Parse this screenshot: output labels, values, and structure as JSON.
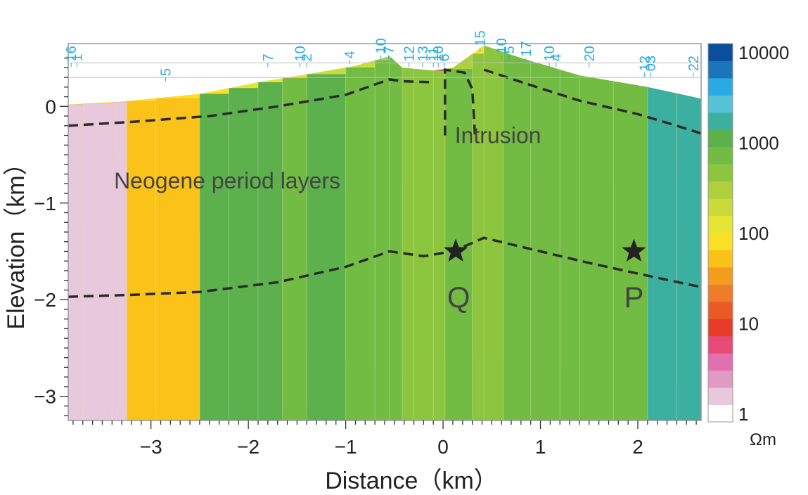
{
  "chart_data": {
    "type": "heatmap",
    "title": "",
    "xlabel": "Distance（km）",
    "ylabel": "Elevation（km）",
    "xlim": [
      -3.85,
      2.65
    ],
    "ylim": [
      -3.25,
      0.65
    ],
    "x_ticks": [
      -3,
      -2,
      -1,
      0,
      1,
      2
    ],
    "x_tick_labels": [
      "−3",
      "−2",
      "−1",
      "0",
      "1",
      "2"
    ],
    "y_ticks": [
      0,
      -1,
      -2,
      -3
    ],
    "y_tick_labels": [
      "0",
      "−1",
      "−2",
      "−3"
    ],
    "grid": false,
    "colorbar": {
      "unit": "Ωm",
      "tick_labels": [
        "10000",
        "1000",
        "100",
        "10",
        "1"
      ],
      "tick_values": [
        10000,
        1000,
        100,
        10,
        1
      ],
      "colors": [
        "#ffffff",
        "#e8c8dc",
        "#e19ac4",
        "#e070ae",
        "#e84a78",
        "#e83c28",
        "#ea5a26",
        "#ee7c28",
        "#f29c20",
        "#fbc21a",
        "#f9e026",
        "#e6e632",
        "#cadc3a",
        "#aed03c",
        "#8cc63e",
        "#72bc44",
        "#5cb14c",
        "#3cb0a0",
        "#56c2d6",
        "#2aaae2",
        "#1a76bc",
        "#0a4f9c"
      ]
    },
    "stations": [
      {
        "label": "16",
        "x": -3.82,
        "ytop": 0.45,
        "rot": true
      },
      {
        "label": "1",
        "x": -3.76,
        "ytop": 0.45,
        "rot": true
      },
      {
        "label": "5",
        "x": -2.85,
        "ytop": 0.3,
        "rot": true
      },
      {
        "label": "7",
        "x": -1.8,
        "ytop": 0.45,
        "rot": true
      },
      {
        "label": "10",
        "x": -1.47,
        "ytop": 0.45,
        "rot": true
      },
      {
        "label": "2",
        "x": -1.4,
        "ytop": 0.45,
        "rot": true
      },
      {
        "label": "4",
        "x": -0.96,
        "ytop": 0.48,
        "rot": true
      },
      {
        "label": "10",
        "x": -0.64,
        "ytop": 0.53,
        "rot": true
      },
      {
        "label": "7",
        "x": -0.56,
        "ytop": 0.53,
        "rot": true
      },
      {
        "label": "12",
        "x": -0.35,
        "ytop": 0.45,
        "rot": true
      },
      {
        "label": "13",
        "x": -0.21,
        "ytop": 0.45,
        "rot": true
      },
      {
        "label": "11",
        "x": -0.1,
        "ytop": 0.45,
        "rot": true
      },
      {
        "label": "10",
        "x": -0.05,
        "ytop": 0.45,
        "rot": true
      },
      {
        "label": "6",
        "x": 0.01,
        "ytop": 0.45,
        "rot": true
      },
      {
        "label": "15",
        "x": 0.38,
        "ytop": 0.61,
        "rot": true
      },
      {
        "label": "10",
        "x": 0.6,
        "ytop": 0.53,
        "rot": true
      },
      {
        "label": "5",
        "x": 0.68,
        "ytop": 0.53,
        "rot": true
      },
      {
        "label": "17",
        "x": 0.85,
        "ytop": 0.5,
        "rot": true
      },
      {
        "label": "10",
        "x": 1.09,
        "ytop": 0.45,
        "rot": true
      },
      {
        "label": "4",
        "x": 1.16,
        "ytop": 0.45,
        "rot": true
      },
      {
        "label": "20",
        "x": 1.5,
        "ytop": 0.45,
        "rot": true
      },
      {
        "label": "12",
        "x": 2.07,
        "ytop": 0.35,
        "rot": true
      },
      {
        "label": "03",
        "x": 2.13,
        "ytop": 0.35,
        "rot": true
      },
      {
        "label": "22",
        "x": 2.57,
        "ytop": 0.35,
        "rot": true
      }
    ],
    "annotations": [
      {
        "text": "Intrusion",
        "x": 0.12,
        "y": -0.38
      },
      {
        "text": "Neogene period layers",
        "x": -3.38,
        "y": -0.85
      },
      {
        "text": "Q",
        "x": 0.16,
        "y": -2.08
      },
      {
        "text": "P",
        "x": 1.96,
        "y": -2.08
      }
    ],
    "markers": [
      {
        "name": "Q",
        "x": 0.13,
        "y": -1.5
      },
      {
        "name": "P",
        "x": 1.96,
        "y": -1.5
      }
    ],
    "surface_topography": [
      {
        "x": -3.85,
        "y": 0.02
      },
      {
        "x": -3.3,
        "y": 0.05
      },
      {
        "x": -2.5,
        "y": 0.13
      },
      {
        "x": -1.9,
        "y": 0.25
      },
      {
        "x": -1.3,
        "y": 0.35
      },
      {
        "x": -0.9,
        "y": 0.42
      },
      {
        "x": -0.55,
        "y": 0.52
      },
      {
        "x": -0.42,
        "y": 0.4
      },
      {
        "x": -0.1,
        "y": 0.37
      },
      {
        "x": 0.1,
        "y": 0.4
      },
      {
        "x": 0.42,
        "y": 0.63
      },
      {
        "x": 0.8,
        "y": 0.5
      },
      {
        "x": 1.4,
        "y": 0.32
      },
      {
        "x": 2.1,
        "y": 0.2
      },
      {
        "x": 2.65,
        "y": 0.08
      }
    ],
    "interpreted_boundaries": {
      "neogene_top": [
        {
          "x": -3.85,
          "y": -0.2
        },
        {
          "x": -3.2,
          "y": -0.16
        },
        {
          "x": -2.4,
          "y": -0.1
        },
        {
          "x": -1.7,
          "y": 0.0
        },
        {
          "x": -1.0,
          "y": 0.12
        },
        {
          "x": -0.55,
          "y": 0.28
        },
        {
          "x": -0.42,
          "y": 0.26
        },
        {
          "x": -0.1,
          "y": 0.25
        }
      ],
      "intrusion_outline": [
        {
          "x": 0.02,
          "y": -0.3
        },
        {
          "x": 0.02,
          "y": 0.38
        },
        {
          "x": 0.22,
          "y": 0.35
        },
        {
          "x": 0.3,
          "y": 0.18
        },
        {
          "x": 0.33,
          "y": -0.35
        }
      ],
      "right_upper": [
        {
          "x": 0.42,
          "y": 0.38
        },
        {
          "x": 0.9,
          "y": 0.22
        },
        {
          "x": 1.4,
          "y": 0.06
        },
        {
          "x": 2.0,
          "y": -0.08
        },
        {
          "x": 2.4,
          "y": -0.2
        },
        {
          "x": 2.65,
          "y": -0.28
        }
      ],
      "basement_top": [
        {
          "x": -3.85,
          "y": -1.97
        },
        {
          "x": -3.2,
          "y": -1.95
        },
        {
          "x": -2.5,
          "y": -1.92
        },
        {
          "x": -1.7,
          "y": -1.82
        },
        {
          "x": -1.0,
          "y": -1.66
        },
        {
          "x": -0.55,
          "y": -1.5
        },
        {
          "x": -0.2,
          "y": -1.55
        },
        {
          "x": 0.1,
          "y": -1.5
        },
        {
          "x": 0.42,
          "y": -1.36
        },
        {
          "x": 1.0,
          "y": -1.5
        },
        {
          "x": 1.5,
          "y": -1.62
        },
        {
          "x": 2.0,
          "y": -1.73
        },
        {
          "x": 2.65,
          "y": -1.87
        }
      ]
    },
    "resistivity_columns": [
      {
        "x0": -3.85,
        "x1": -3.7,
        "layers": [
          [
            0.02,
            11
          ],
          [
            -0.2,
            5
          ],
          [
            -0.45,
            3
          ],
          [
            -0.75,
            1
          ],
          [
            -1.25,
            9
          ],
          [
            -1.7,
            8
          ],
          [
            -2.0,
            7
          ],
          [
            -3.1,
            1
          ]
        ]
      },
      {
        "x0": -3.7,
        "x1": -3.4,
        "layers": [
          [
            0.03,
            10
          ],
          [
            -0.2,
            5
          ],
          [
            -0.4,
            3
          ],
          [
            -0.8,
            3
          ],
          [
            -1.25,
            7
          ],
          [
            -2.0,
            8
          ],
          [
            -3.1,
            1
          ]
        ]
      },
      {
        "x0": -3.4,
        "x1": -3.25,
        "layers": [
          [
            0.04,
            10
          ],
          [
            -0.2,
            5
          ],
          [
            -0.5,
            4
          ],
          [
            -1.25,
            7
          ],
          [
            -2.0,
            8
          ],
          [
            -3.1,
            1
          ]
        ]
      },
      {
        "x0": -3.25,
        "x1": -2.95,
        "layers": [
          [
            0.06,
            10
          ],
          [
            -0.17,
            6
          ],
          [
            -0.4,
            5
          ],
          [
            -0.8,
            5
          ],
          [
            -1.25,
            9
          ],
          [
            -1.85,
            8
          ],
          [
            -2.0,
            11
          ],
          [
            -3.12,
            9
          ]
        ]
      },
      {
        "x0": -2.95,
        "x1": -2.5,
        "layers": [
          [
            0.1,
            10
          ],
          [
            -0.15,
            7
          ],
          [
            -0.45,
            5
          ],
          [
            -0.8,
            5
          ],
          [
            -1.25,
            8
          ],
          [
            -1.9,
            8
          ],
          [
            -2.0,
            11
          ],
          [
            -3.12,
            9
          ]
        ]
      },
      {
        "x0": -2.5,
        "x1": -2.2,
        "layers": [
          [
            0.16,
            10
          ],
          [
            -0.12,
            1
          ],
          [
            -0.35,
            5
          ],
          [
            -1.3,
            12
          ],
          [
            -1.9,
            13
          ],
          [
            -3.1,
            16
          ]
        ]
      },
      {
        "x0": -2.2,
        "x1": -1.9,
        "layers": [
          [
            0.22,
            11
          ],
          [
            -0.1,
            1
          ],
          [
            -0.35,
            2
          ],
          [
            -1.3,
            8
          ],
          [
            -1.85,
            13
          ],
          [
            -3.1,
            16
          ]
        ]
      },
      {
        "x0": -1.9,
        "x1": -1.65,
        "layers": [
          [
            0.27,
            11
          ],
          [
            -0.05,
            1
          ],
          [
            -0.35,
            5
          ],
          [
            -1.2,
            8
          ],
          [
            -1.8,
            8
          ],
          [
            -3.1,
            16
          ]
        ]
      },
      {
        "x0": -1.65,
        "x1": -1.4,
        "layers": [
          [
            0.31,
            11
          ],
          [
            0.0,
            4
          ],
          [
            -0.5,
            1
          ],
          [
            -1.2,
            3
          ],
          [
            -1.75,
            8
          ],
          [
            -3.1,
            15
          ]
        ]
      },
      {
        "x0": -1.4,
        "x1": -1.0,
        "layers": [
          [
            0.36,
            12
          ],
          [
            0.05,
            4
          ],
          [
            -0.25,
            3
          ],
          [
            -0.9,
            1
          ],
          [
            -1.65,
            8
          ],
          [
            -2.5,
            9
          ],
          [
            -3.1,
            16
          ]
        ]
      },
      {
        "x0": -1.0,
        "x1": -0.7,
        "layers": [
          [
            0.42,
            12
          ],
          [
            0.12,
            3
          ],
          [
            -0.5,
            4
          ],
          [
            -0.9,
            5
          ],
          [
            -1.6,
            10
          ],
          [
            -2.65,
            15
          ]
        ]
      },
      {
        "x0": -0.7,
        "x1": -0.55,
        "layers": [
          [
            0.47,
            13
          ],
          [
            0.2,
            5
          ],
          [
            -0.2,
            4
          ],
          [
            -0.9,
            8
          ],
          [
            -1.5,
            10
          ],
          [
            -2.7,
            15
          ]
        ]
      },
      {
        "x0": -0.55,
        "x1": -0.42,
        "layers": [
          [
            0.52,
            14
          ],
          [
            0.3,
            6
          ],
          [
            -0.3,
            4
          ],
          [
            -0.9,
            8
          ],
          [
            -1.5,
            10
          ],
          [
            -2.7,
            15
          ]
        ]
      },
      {
        "x0": -0.42,
        "x1": -0.3,
        "layers": [
          [
            0.45,
            13
          ],
          [
            0.2,
            9
          ],
          [
            0.0,
            5
          ],
          [
            -0.8,
            5
          ],
          [
            -1.55,
            11
          ],
          [
            -2.75,
            14
          ]
        ]
      },
      {
        "x0": -0.3,
        "x1": -0.1,
        "layers": [
          [
            0.38,
            6
          ],
          [
            0.1,
            3
          ],
          [
            -0.35,
            4
          ],
          [
            -0.8,
            5
          ],
          [
            -1.55,
            11
          ],
          [
            -2.8,
            14
          ]
        ]
      },
      {
        "x0": -0.1,
        "x1": 0.02,
        "layers": [
          [
            0.37,
            5
          ],
          [
            0.0,
            9
          ],
          [
            -0.45,
            4
          ],
          [
            -0.85,
            5
          ],
          [
            -1.52,
            10
          ],
          [
            -2.8,
            14
          ]
        ]
      },
      {
        "x0": 0.02,
        "x1": 0.3,
        "layers": [
          [
            0.4,
            13
          ],
          [
            0.2,
            12
          ],
          [
            -0.3,
            7
          ],
          [
            -0.6,
            5
          ],
          [
            -1.45,
            10
          ],
          [
            -2.65,
            15
          ]
        ]
      },
      {
        "x0": 0.3,
        "x1": 0.42,
        "layers": [
          [
            0.6,
            10
          ],
          [
            0.3,
            4
          ],
          [
            -0.6,
            5
          ],
          [
            -1.4,
            10
          ],
          [
            -2.55,
            14
          ]
        ]
      },
      {
        "x0": 0.42,
        "x1": 0.62,
        "layers": [
          [
            0.63,
            12
          ],
          [
            0.38,
            5
          ],
          [
            -0.1,
            5
          ],
          [
            -0.6,
            4
          ],
          [
            -1.36,
            10
          ],
          [
            -2.55,
            14
          ]
        ]
      },
      {
        "x0": 0.62,
        "x1": 0.9,
        "layers": [
          [
            0.55,
            12
          ],
          [
            0.3,
            6
          ],
          [
            0.0,
            4
          ],
          [
            -0.5,
            6
          ],
          [
            -1.45,
            12
          ],
          [
            -2.6,
            15
          ]
        ]
      },
      {
        "x0": 0.9,
        "x1": 1.2,
        "layers": [
          [
            0.48,
            12
          ],
          [
            0.2,
            5
          ],
          [
            0.0,
            4
          ],
          [
            -0.7,
            7
          ],
          [
            -1.5,
            14
          ],
          [
            -2.65,
            15
          ]
        ]
      },
      {
        "x0": 1.2,
        "x1": 1.4,
        "layers": [
          [
            0.42,
            12
          ],
          [
            0.12,
            5
          ],
          [
            -0.7,
            6
          ],
          [
            -1.55,
            14
          ],
          [
            -2.7,
            15
          ]
        ]
      },
      {
        "x0": 1.4,
        "x1": 1.75,
        "layers": [
          [
            0.35,
            13
          ],
          [
            0.05,
            6
          ],
          [
            -1.0,
            8
          ],
          [
            -1.65,
            14
          ],
          [
            -2.75,
            15
          ]
        ]
      },
      {
        "x0": 1.75,
        "x1": 2.1,
        "layers": [
          [
            0.27,
            13
          ],
          [
            -0.05,
            5
          ],
          [
            -0.8,
            8
          ],
          [
            -1.7,
            14
          ],
          [
            -2.85,
            15
          ]
        ]
      },
      {
        "x0": 2.1,
        "x1": 2.4,
        "layers": [
          [
            0.2,
            12
          ],
          [
            -0.15,
            7
          ],
          [
            -1.0,
            8
          ],
          [
            -1.8,
            14
          ],
          [
            -2.85,
            17
          ]
        ]
      },
      {
        "x0": 2.4,
        "x1": 2.65,
        "layers": [
          [
            0.12,
            12
          ],
          [
            -0.25,
            8
          ],
          [
            -0.6,
            9
          ],
          [
            -1.2,
            7
          ],
          [
            -1.85,
            14
          ],
          [
            -2.9,
            17
          ]
        ]
      }
    ],
    "bottom_y": -3.25
  }
}
